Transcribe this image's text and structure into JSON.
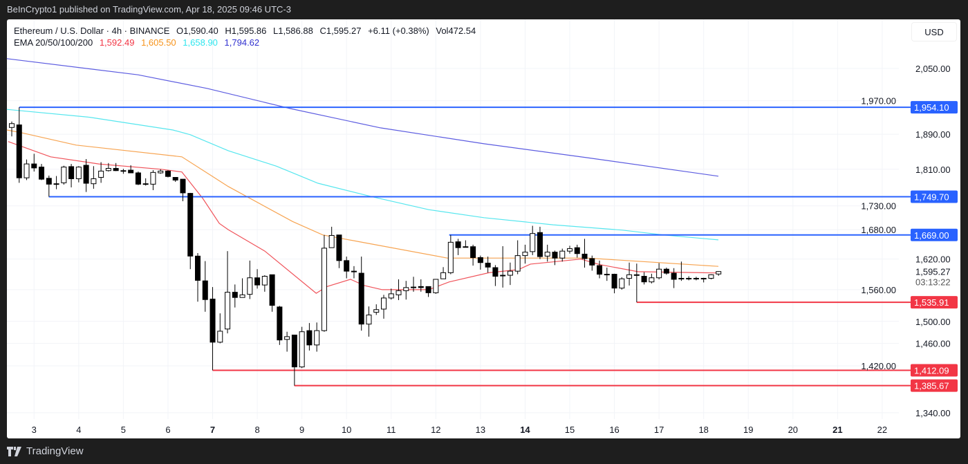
{
  "publisher_line": "BeInCrypto1 published on TradingView.com, Apr 18, 2025 09:46 UTC-3",
  "legend": {
    "symbol": "Ethereum / U.S. Dollar · 4h · BINANCE",
    "open": "O1,590.40",
    "high": "H1,595.86",
    "low": "L1,586.88",
    "close": "C1,595.27",
    "change": "+6.11 (+0.38%)",
    "volume": "Vol472.54",
    "ema_label": "EMA 20/50/100/200",
    "ema_values": [
      "1,592.49",
      "1,605.50",
      "1,658.90",
      "1,794.62"
    ]
  },
  "currency_button": "USD",
  "footer": {
    "brand": "TradingView"
  },
  "colors": {
    "ema20": "#f0535a",
    "ema50": "#f7a451",
    "ema100": "#55e6ee",
    "ema200": "#5b5be0",
    "resistance": "#2962ff",
    "support": "#f23645",
    "candle": "#000000"
  },
  "chart_data": {
    "type": "candlestick",
    "title": "Ethereum / U.S. Dollar · 4h · BINANCE",
    "y_scale": "log",
    "ylim": [
      1300,
      2120
    ],
    "xlim_days": [
      2.3,
      23
    ],
    "grid": true,
    "x_tick_labels": [
      {
        "day": 3,
        "label": "3",
        "bold": false
      },
      {
        "day": 4,
        "label": "4",
        "bold": false
      },
      {
        "day": 5,
        "label": "5",
        "bold": false
      },
      {
        "day": 6,
        "label": "6",
        "bold": false
      },
      {
        "day": 7,
        "label": "7",
        "bold": true
      },
      {
        "day": 8,
        "label": "8",
        "bold": false
      },
      {
        "day": 9,
        "label": "9",
        "bold": false
      },
      {
        "day": 10,
        "label": "10",
        "bold": false
      },
      {
        "day": 11,
        "label": "11",
        "bold": false
      },
      {
        "day": 12,
        "label": "12",
        "bold": false
      },
      {
        "day": 13,
        "label": "13",
        "bold": false
      },
      {
        "day": 14,
        "label": "14",
        "bold": true
      },
      {
        "day": 15,
        "label": "15",
        "bold": false
      },
      {
        "day": 16,
        "label": "16",
        "bold": false
      },
      {
        "day": 17,
        "label": "17",
        "bold": false
      },
      {
        "day": 18,
        "label": "18",
        "bold": false
      },
      {
        "day": 19,
        "label": "19",
        "bold": false
      },
      {
        "day": 20,
        "label": "20",
        "bold": false
      },
      {
        "day": 21,
        "label": "21",
        "bold": true
      },
      {
        "day": 22,
        "label": "22",
        "bold": false
      }
    ],
    "y_tick_labels": [
      {
        "value": 2050,
        "label": "2,050.00"
      },
      {
        "value": 1970,
        "label": "1,970.00"
      },
      {
        "value": 1890,
        "label": "1,890.00"
      },
      {
        "value": 1810,
        "label": "1,810.00"
      },
      {
        "value": 1730,
        "label": "1,730.00"
      },
      {
        "value": 1680,
        "label": "1,680.00"
      },
      {
        "value": 1620,
        "label": "1,620.00"
      },
      {
        "value": 1560,
        "label": "1,560.00"
      },
      {
        "value": 1500,
        "label": "1,500.00"
      },
      {
        "value": 1460,
        "label": "1,460.00"
      },
      {
        "value": 1420,
        "label": "1,420.00"
      },
      {
        "value": 1340,
        "label": "1,340.00"
      }
    ],
    "last_price": {
      "value": 1595.27,
      "label": "1,595.27",
      "countdown": "03:13:22"
    },
    "first_candle_day": 2.5,
    "candles_per_day": 6,
    "candles_ohlc": [
      [
        1906,
        1920,
        1885,
        1915
      ],
      [
        1912,
        1954.1,
        1780,
        1791
      ],
      [
        1791,
        1832,
        1786,
        1822
      ],
      [
        1822,
        1845,
        1805,
        1813
      ],
      [
        1815,
        1822,
        1786,
        1788
      ],
      [
        1790,
        1796,
        1749.7,
        1777
      ],
      [
        1777,
        1795,
        1766,
        1778
      ],
      [
        1780,
        1818,
        1776,
        1815
      ],
      [
        1816,
        1822,
        1770,
        1789
      ],
      [
        1789,
        1817,
        1781,
        1815
      ],
      [
        1819,
        1833,
        1760,
        1779
      ],
      [
        1778,
        1817,
        1767,
        1789
      ],
      [
        1792,
        1826,
        1780,
        1806
      ],
      [
        1807,
        1824,
        1805,
        1812
      ],
      [
        1812,
        1824,
        1806,
        1807
      ],
      [
        1807,
        1811,
        1800,
        1806
      ],
      [
        1808,
        1819,
        1802,
        1802
      ],
      [
        1802,
        1805,
        1775,
        1777
      ],
      [
        1777,
        1790,
        1774,
        1778
      ],
      [
        1777,
        1808,
        1764,
        1803
      ],
      [
        1802,
        1810,
        1800,
        1806
      ],
      [
        1806,
        1808,
        1792,
        1794
      ],
      [
        1792,
        1792,
        1782,
        1786
      ],
      [
        1788,
        1788,
        1740,
        1758
      ],
      [
        1757,
        1758,
        1600,
        1626
      ],
      [
        1626,
        1632,
        1537,
        1578
      ],
      [
        1577,
        1616,
        1518,
        1541
      ],
      [
        1542,
        1565,
        1412.09,
        1462
      ],
      [
        1462,
        1515,
        1460,
        1482
      ],
      [
        1486,
        1636,
        1478,
        1555
      ],
      [
        1555,
        1570,
        1526,
        1545
      ],
      [
        1545,
        1582,
        1545,
        1550
      ],
      [
        1551,
        1617,
        1542,
        1583
      ],
      [
        1583,
        1600,
        1562,
        1569
      ],
      [
        1569,
        1588,
        1556,
        1586
      ],
      [
        1589,
        1589,
        1518,
        1530
      ],
      [
        1527,
        1529,
        1457,
        1466
      ],
      [
        1467,
        1481,
        1445,
        1472
      ],
      [
        1475,
        1475,
        1385.67,
        1418
      ],
      [
        1418,
        1490,
        1416,
        1481
      ],
      [
        1483,
        1497,
        1447,
        1457
      ],
      [
        1457,
        1498,
        1445,
        1483
      ],
      [
        1483,
        1669,
        1481,
        1642
      ],
      [
        1643,
        1686,
        1643,
        1668
      ],
      [
        1669,
        1669,
        1602,
        1617
      ],
      [
        1617,
        1625,
        1582,
        1596
      ],
      [
        1596,
        1606,
        1582,
        1596
      ],
      [
        1592,
        1625,
        1483,
        1495
      ],
      [
        1495,
        1528,
        1472,
        1512
      ],
      [
        1517,
        1532,
        1512,
        1522
      ],
      [
        1523,
        1550,
        1505,
        1544
      ],
      [
        1544,
        1562,
        1541,
        1552
      ],
      [
        1550,
        1580,
        1540,
        1558
      ],
      [
        1558,
        1577,
        1541,
        1564
      ],
      [
        1565,
        1585,
        1556,
        1565
      ],
      [
        1566,
        1580,
        1556,
        1564
      ],
      [
        1566,
        1566,
        1546,
        1554
      ],
      [
        1554,
        1580,
        1552,
        1580
      ],
      [
        1581,
        1604,
        1581,
        1593
      ],
      [
        1593,
        1669,
        1590,
        1654
      ],
      [
        1655,
        1661,
        1628,
        1643
      ],
      [
        1645,
        1658,
        1644,
        1644
      ],
      [
        1645,
        1649,
        1607,
        1623
      ],
      [
        1623,
        1627,
        1599,
        1613
      ],
      [
        1612,
        1625,
        1593,
        1604
      ],
      [
        1603,
        1608,
        1567,
        1586
      ],
      [
        1587,
        1646,
        1564,
        1588
      ],
      [
        1588,
        1613,
        1569,
        1596
      ],
      [
        1596,
        1658,
        1590,
        1627
      ],
      [
        1627,
        1649,
        1611,
        1634
      ],
      [
        1635,
        1688,
        1628,
        1672
      ],
      [
        1674,
        1686,
        1620,
        1625
      ],
      [
        1626,
        1649,
        1615,
        1634
      ],
      [
        1634,
        1637,
        1608,
        1622
      ],
      [
        1622,
        1641,
        1615,
        1636
      ],
      [
        1636,
        1647,
        1631,
        1641
      ],
      [
        1643,
        1649,
        1623,
        1631
      ],
      [
        1630,
        1661,
        1603,
        1621
      ],
      [
        1621,
        1627,
        1597,
        1608
      ],
      [
        1607,
        1617,
        1582,
        1590
      ],
      [
        1590,
        1603,
        1577,
        1590
      ],
      [
        1590,
        1591,
        1553,
        1563
      ],
      [
        1563,
        1584,
        1560,
        1581
      ],
      [
        1582,
        1613,
        1568,
        1589
      ],
      [
        1589,
        1611,
        1535.91,
        1589
      ],
      [
        1586,
        1594,
        1570,
        1575
      ],
      [
        1575,
        1591,
        1572,
        1583
      ],
      [
        1583,
        1612,
        1580,
        1600
      ],
      [
        1600,
        1603,
        1589,
        1592
      ],
      [
        1592,
        1602,
        1563,
        1580
      ],
      [
        1582,
        1615,
        1577,
        1582
      ],
      [
        1582,
        1586,
        1578,
        1581
      ],
      [
        1581,
        1585,
        1578,
        1582
      ],
      [
        1582,
        1583,
        1574,
        1582
      ],
      [
        1582,
        1590,
        1580,
        1589
      ],
      [
        1590.4,
        1595.86,
        1586.88,
        1595.27
      ]
    ],
    "series": [
      {
        "name": "EMA 20",
        "color": "#f0535a",
        "points": [
          [
            2.42,
            1873
          ],
          [
            3.37,
            1838
          ],
          [
            4.45,
            1822
          ],
          [
            5.85,
            1810
          ],
          [
            6.31,
            1804
          ],
          [
            6.78,
            1746
          ],
          [
            7.15,
            1693
          ],
          [
            7.35,
            1680
          ],
          [
            8.17,
            1636
          ],
          [
            9.32,
            1553
          ],
          [
            9.56,
            1566
          ],
          [
            10.09,
            1580
          ],
          [
            10.4,
            1568
          ],
          [
            10.8,
            1560
          ],
          [
            11.84,
            1560
          ],
          [
            12.3,
            1575
          ],
          [
            13.19,
            1593
          ],
          [
            13.85,
            1599
          ],
          [
            14.12,
            1610
          ],
          [
            15.25,
            1620
          ],
          [
            15.67,
            1609
          ],
          [
            16.53,
            1595
          ],
          [
            18.3,
            1592.49
          ]
        ]
      },
      {
        "name": "EMA 50",
        "color": "#f7a451",
        "points": [
          [
            2.39,
            1900
          ],
          [
            2.7,
            1894
          ],
          [
            3.94,
            1865
          ],
          [
            6.31,
            1838
          ],
          [
            7.35,
            1772
          ],
          [
            8.79,
            1697
          ],
          [
            9.47,
            1669
          ],
          [
            10.29,
            1655
          ],
          [
            12.26,
            1622
          ],
          [
            15.4,
            1622
          ],
          [
            18.33,
            1605.5
          ]
        ]
      },
      {
        "name": "EMA 100",
        "color": "#55e6ee",
        "points": [
          [
            2.39,
            1949
          ],
          [
            4.25,
            1930
          ],
          [
            6.11,
            1900
          ],
          [
            6.5,
            1889
          ],
          [
            7.35,
            1852
          ],
          [
            8.43,
            1817
          ],
          [
            9.36,
            1779
          ],
          [
            10.6,
            1749
          ],
          [
            11.84,
            1722
          ],
          [
            13.08,
            1705
          ],
          [
            14.63,
            1690
          ],
          [
            16.18,
            1679
          ],
          [
            17.11,
            1669
          ],
          [
            18.33,
            1658.9
          ]
        ]
      },
      {
        "name": "EMA 200",
        "color": "#5b5be0",
        "points": [
          [
            2.39,
            2075
          ],
          [
            5.33,
            2034
          ],
          [
            6.88,
            2000
          ],
          [
            8.74,
            1951
          ],
          [
            10.76,
            1905
          ],
          [
            13.08,
            1868
          ],
          [
            15.4,
            1836
          ],
          [
            18.33,
            1794.62
          ]
        ]
      }
    ],
    "levels": [
      {
        "value": 1954.1,
        "label": "1,954.10",
        "kind": "resistance",
        "from_day": 2.67
      },
      {
        "value": 1749.7,
        "label": "1,749.70",
        "kind": "resistance",
        "from_day": 3.33
      },
      {
        "value": 1669.0,
        "label": "1,669.00",
        "kind": "resistance",
        "from_day": 12.3
      },
      {
        "value": 1535.91,
        "label": "1,535.91",
        "kind": "support",
        "from_day": 16.5
      },
      {
        "value": 1412.09,
        "label": "1,412.09",
        "kind": "support",
        "from_day": 7.0
      },
      {
        "value": 1385.67,
        "label": "1,385.67",
        "kind": "support",
        "from_day": 8.83
      }
    ]
  }
}
